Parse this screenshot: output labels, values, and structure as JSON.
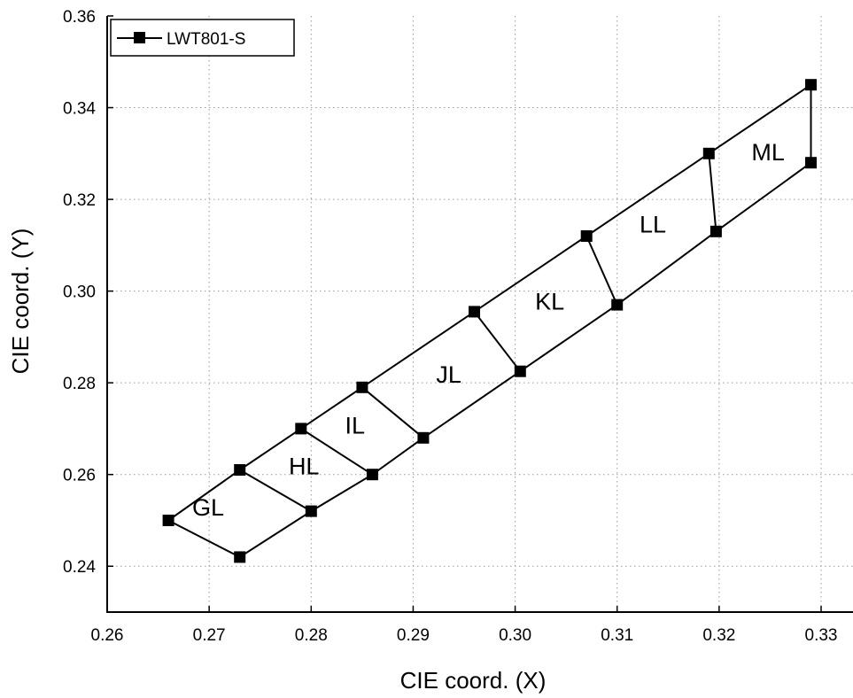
{
  "chart_data": {
    "type": "line",
    "title": "",
    "xlabel": "CIE coord. (X)",
    "ylabel": "CIE coord. (Y)",
    "xlim": [
      0.26,
      0.33
    ],
    "ylim": [
      0.23,
      0.36
    ],
    "x_ticks": [
      "0.26",
      "0.27",
      "0.28",
      "0.29",
      "0.30",
      "0.31",
      "0.32",
      "0.33"
    ],
    "y_ticks": [
      "0.24",
      "0.26",
      "0.28",
      "0.30",
      "0.32",
      "0.34",
      "0.36"
    ],
    "grid": true,
    "legend_position": "top-left",
    "series": [
      {
        "name": "LWT801-S",
        "marker": "square",
        "color": "#000000",
        "segments": [
          [
            [
              0.266,
              0.25
            ],
            [
              0.273,
              0.261
            ],
            [
              0.279,
              0.27
            ],
            [
              0.285,
              0.279
            ],
            [
              0.296,
              0.2955
            ],
            [
              0.307,
              0.312
            ],
            [
              0.319,
              0.33
            ],
            [
              0.329,
              0.345
            ]
          ],
          [
            [
              0.266,
              0.25
            ],
            [
              0.273,
              0.242
            ],
            [
              0.28,
              0.252
            ],
            [
              0.286,
              0.26
            ],
            [
              0.291,
              0.268
            ],
            [
              0.3005,
              0.2825
            ],
            [
              0.31,
              0.297
            ],
            [
              0.3197,
              0.313
            ],
            [
              0.329,
              0.328
            ]
          ],
          [
            [
              0.273,
              0.261
            ],
            [
              0.28,
              0.252
            ]
          ],
          [
            [
              0.279,
              0.27
            ],
            [
              0.286,
              0.26
            ]
          ],
          [
            [
              0.285,
              0.279
            ],
            [
              0.291,
              0.268
            ]
          ],
          [
            [
              0.296,
              0.2955
            ],
            [
              0.3005,
              0.2825
            ]
          ],
          [
            [
              0.307,
              0.312
            ],
            [
              0.31,
              0.297
            ]
          ],
          [
            [
              0.319,
              0.33
            ],
            [
              0.3197,
              0.313
            ]
          ],
          [
            [
              0.329,
              0.345
            ],
            [
              0.329,
              0.328
            ]
          ]
        ]
      }
    ],
    "annotations": [
      {
        "text": "GL",
        "x": 0.2699,
        "y": 0.2511
      },
      {
        "text": "HL",
        "x": 0.2793,
        "y": 0.26
      },
      {
        "text": "IL",
        "x": 0.2843,
        "y": 0.2689
      },
      {
        "text": "JL",
        "x": 0.2935,
        "y": 0.28
      },
      {
        "text": "KL",
        "x": 0.3034,
        "y": 0.296
      },
      {
        "text": "LL",
        "x": 0.3135,
        "y": 0.3128
      },
      {
        "text": "ML",
        "x": 0.3248,
        "y": 0.3285
      }
    ]
  }
}
